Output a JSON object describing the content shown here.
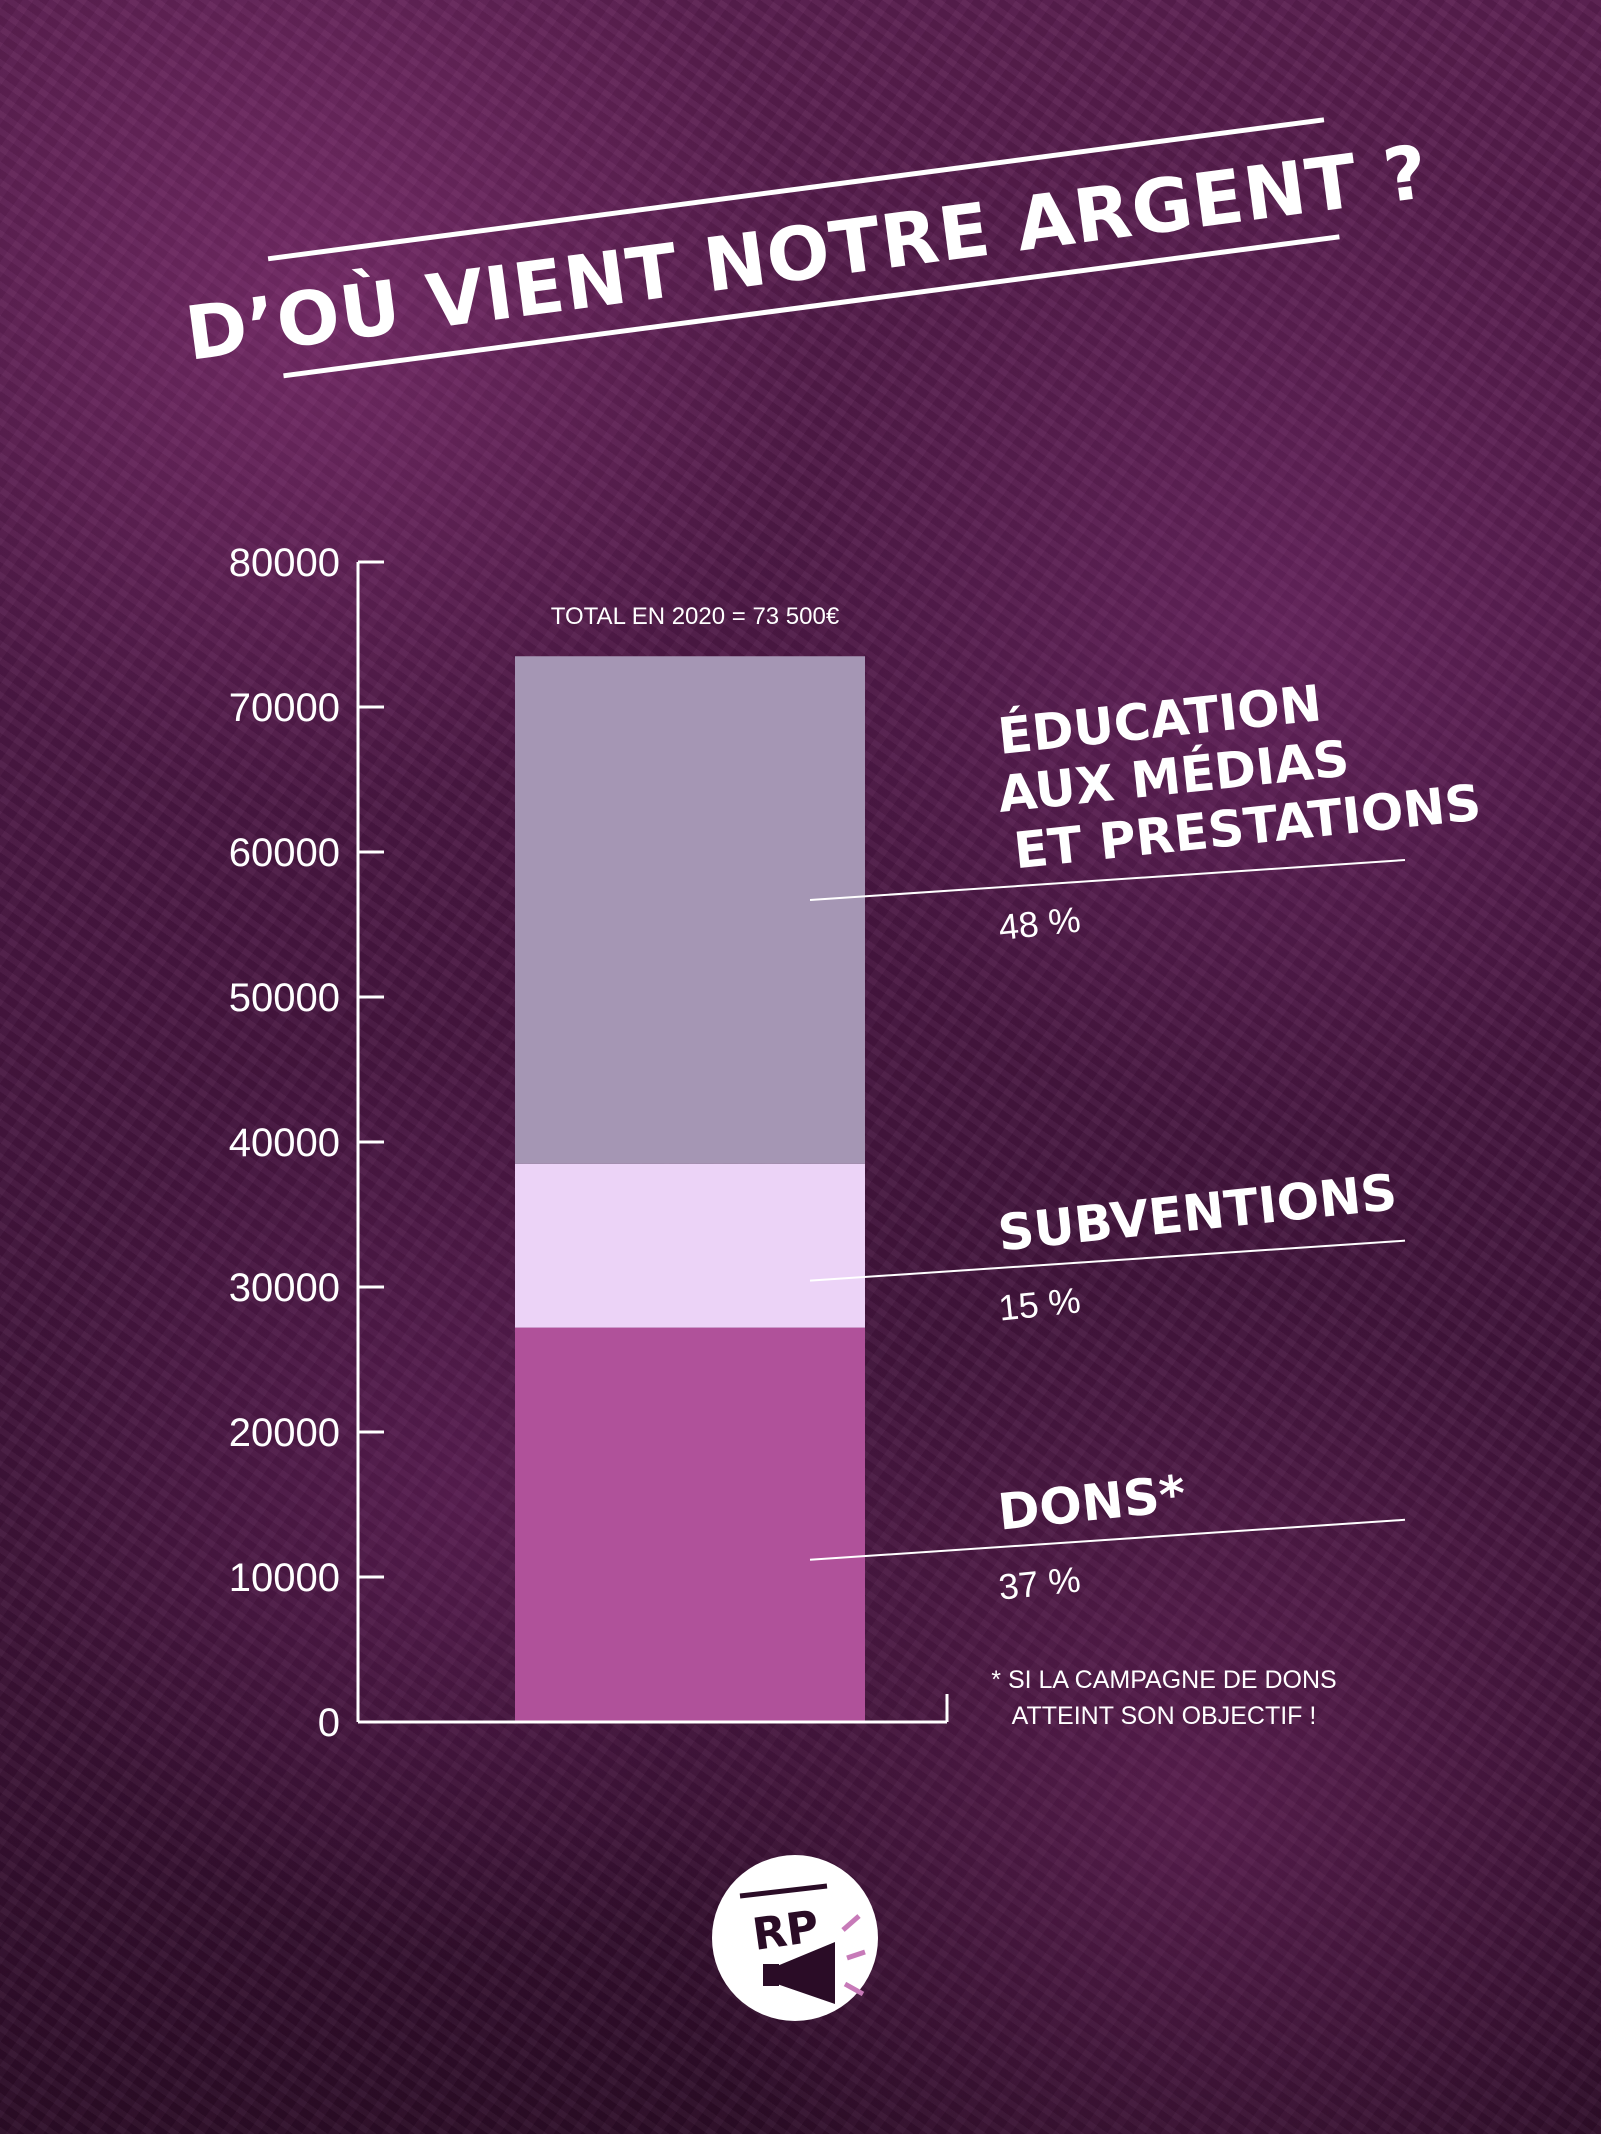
{
  "chart_data": {
    "type": "bar",
    "stacked": true,
    "title": "D’OÙ VIENT NOTRE ARGENT ?",
    "total_label": "TOTAL EN 2020 =  73 500€",
    "ylim": [
      0,
      80000
    ],
    "yticks": [
      "0",
      "10000",
      "20000",
      "30000",
      "40000",
      "50000",
      "60000",
      "70000",
      "80000"
    ],
    "grid": false,
    "series": [
      {
        "name_lines": [
          "DONS*"
        ],
        "percent": "37 %",
        "value": 27200,
        "color": "#b0519a"
      },
      {
        "name_lines": [
          "SUBVENTIONS"
        ],
        "percent": "15 %",
        "value": 11300,
        "color": "#ecd3f7"
      },
      {
        "name_lines": [
          "ÉDUCATION",
          "AUX MÉDIAS",
          "ET PRESTATIONS"
        ],
        "percent": "48 %",
        "value": 35000,
        "color": "#a596b4"
      }
    ],
    "footnote_lines": [
      "* SI LA CAMPAGNE DE DONS",
      "ATTEINT SON OBJECTIF !"
    ]
  },
  "logo": {
    "text": "RP",
    "icon": "megaphone-icon"
  }
}
